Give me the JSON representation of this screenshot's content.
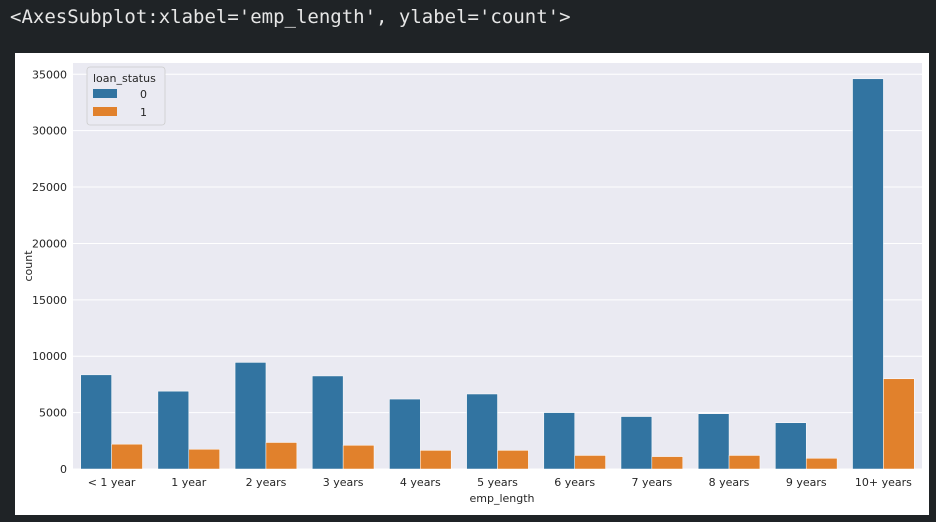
{
  "output_text": "<AxesSubplot:xlabel='emp_length', ylabel='count'>",
  "chart_data": {
    "type": "bar",
    "categories": [
      "< 1 year",
      "1 year",
      "2 years",
      "3 years",
      "4 years",
      "5 years",
      "6 years",
      "7 years",
      "8 years",
      "9 years",
      "10+ years"
    ],
    "series": [
      {
        "name": "0",
        "color": "#3274a1",
        "values": [
          8350,
          6900,
          9450,
          8250,
          6200,
          6650,
          5000,
          4650,
          4900,
          4100,
          34600
        ]
      },
      {
        "name": "1",
        "color": "#e1812c",
        "values": [
          2200,
          1750,
          2350,
          2100,
          1650,
          1650,
          1200,
          1100,
          1200,
          950,
          8000
        ]
      }
    ],
    "xlabel": "emp_length",
    "ylabel": "count",
    "ylim": [
      0,
      36000
    ],
    "yticks": [
      0,
      5000,
      10000,
      15000,
      20000,
      25000,
      30000,
      35000
    ],
    "grid": true,
    "legend": {
      "title": "loan_status",
      "placement": "top-left"
    }
  }
}
